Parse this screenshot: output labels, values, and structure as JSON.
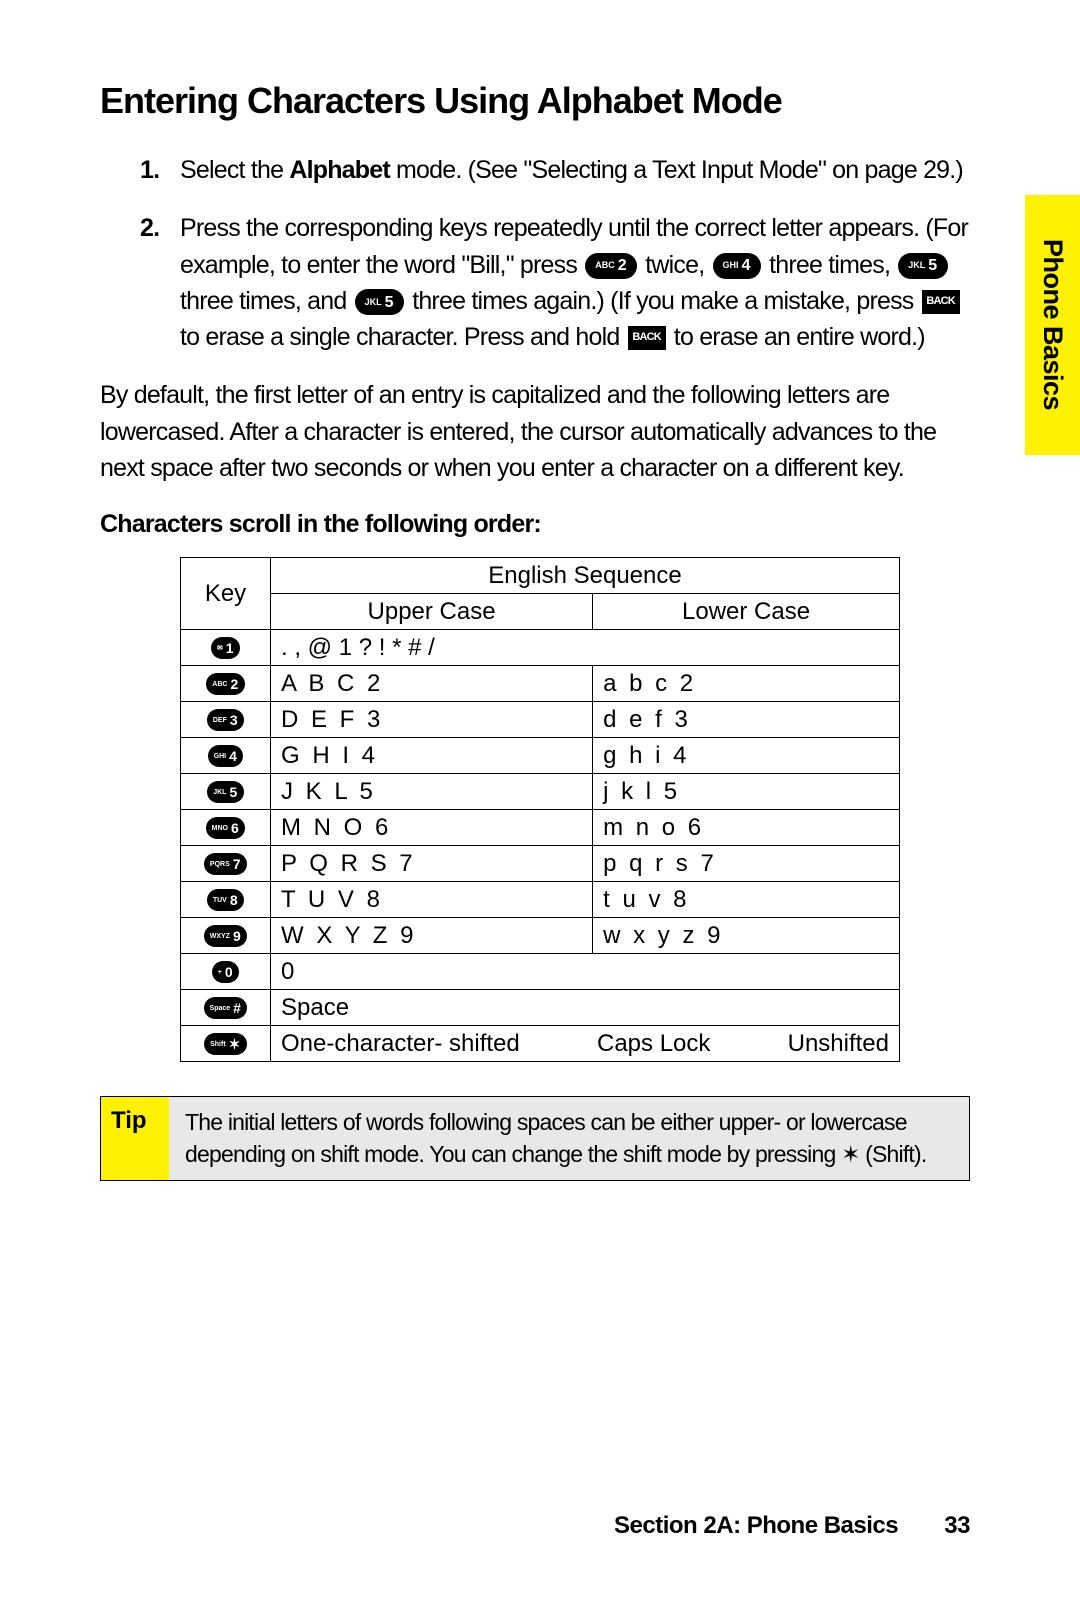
{
  "side_tab": "Phone Basics",
  "heading": "Entering Characters Using Alphabet Mode",
  "steps": [
    {
      "num": "1.",
      "pre": "Select the ",
      "bold": "Alphabet",
      "post": " mode. (See \"Selecting a Text Input Mode\" on page 29.)"
    },
    {
      "num": "2.",
      "line1": "Press the corresponding keys repeatedly until the correct letter appears. (For example, to enter the word \"Bill,\" press ",
      "k1_lab": "ABC",
      "k1_num": "2",
      "tw": " twice, ",
      "k2_lab": "GHI",
      "k2_num": "4",
      "th1": " three times, ",
      "k3_lab": "JKL",
      "k3_num": "5",
      "th2": " three times, and ",
      "k4_lab": "JKL",
      "k4_num": "5",
      "th3": " three times again.) (If you make a mistake, press ",
      "back1": "BACK",
      "er1": " to erase a single character. Press and hold ",
      "back2": "BACK",
      "er2": " to erase an entire word.)"
    }
  ],
  "para": "By default, the first letter of an entry is capitalized and the following letters are lowercased. After a character is entered, the cursor automatically advances to the next space after two seconds or when you enter a character on a different key.",
  "subhead": "Characters scroll in the following order:",
  "table": {
    "key_hdr": "Key",
    "eng_hdr": "English Sequence",
    "upper_hdr": "Upper Case",
    "lower_hdr": "Lower Case",
    "rows": [
      {
        "key_lab": "✉",
        "key_num": "1",
        "span": ". , @ 1 ? ! * # /"
      },
      {
        "key_lab": "ABC",
        "key_num": "2",
        "upper": "A B C 2",
        "lower": "a b c 2"
      },
      {
        "key_lab": "DEF",
        "key_num": "3",
        "upper": "D E F 3",
        "lower": "d e f 3"
      },
      {
        "key_lab": "GHI",
        "key_num": "4",
        "upper": "G H I 4",
        "lower": "g h i 4"
      },
      {
        "key_lab": "JKL",
        "key_num": "5",
        "upper": "J K L 5",
        "lower": "j k l 5"
      },
      {
        "key_lab": "MNO",
        "key_num": "6",
        "upper": "M N O 6",
        "lower": "m n o 6"
      },
      {
        "key_lab": "PQRS",
        "key_num": "7",
        "upper": "P Q R S 7",
        "lower": "p q r s 7"
      },
      {
        "key_lab": "TUV",
        "key_num": "8",
        "upper": "T U V 8",
        "lower": "t u v 8"
      },
      {
        "key_lab": "WXYZ",
        "key_num": "9",
        "upper": "W X Y Z 9",
        "lower": "w x y z 9"
      },
      {
        "key_lab": "+",
        "key_num": "0",
        "span": "0"
      },
      {
        "key_lab": "Space",
        "key_num": "#",
        "span": "Space"
      },
      {
        "key_lab": "Shift",
        "key_num": "✶",
        "c1": "One-character- shifted",
        "c2": "Caps Lock",
        "c3": "Unshifted"
      }
    ]
  },
  "tip": {
    "label": "Tip",
    "text": "The initial letters of words following spaces can be either upper- or lowercase depending on shift mode. You can change the shift mode by pressing ✶ (Shift)."
  },
  "footer": {
    "section": "Section 2A: Phone Basics",
    "page": "33"
  },
  "colors": {
    "accent": "#fff200",
    "tip_bg": "#e8e8e8"
  }
}
